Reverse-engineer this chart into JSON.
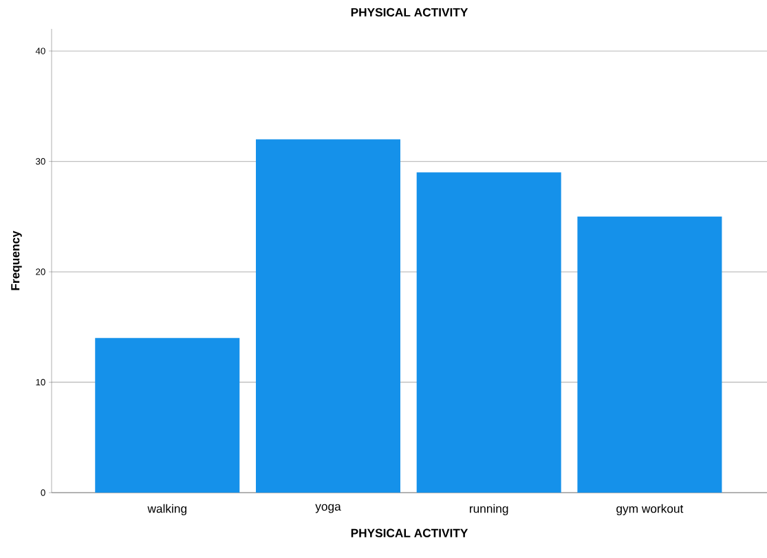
{
  "chart_data": {
    "type": "bar",
    "title": "PHYSICAL ACTIVITY",
    "xlabel": "PHYSICAL ACTIVITY",
    "ylabel": "Frequency",
    "categories": [
      "walking",
      "yoga",
      "running",
      "gym workout"
    ],
    "values": [
      14,
      32,
      29,
      25
    ],
    "color": "#1591ea",
    "ylim": [
      0,
      42
    ],
    "yticks": [
      0,
      10,
      20,
      30,
      40
    ],
    "grid": "y"
  }
}
